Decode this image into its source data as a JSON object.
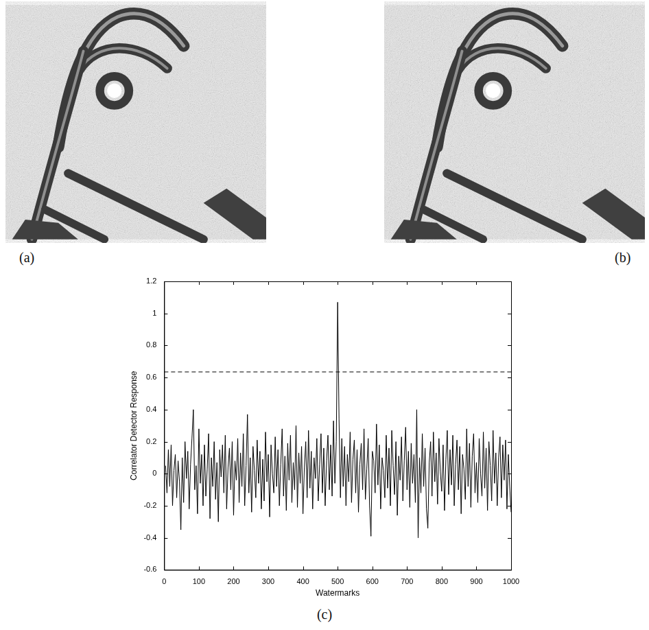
{
  "images": [
    {
      "label": "(a)"
    },
    {
      "label": "(b)"
    }
  ],
  "chart_caption": "(c)",
  "chart_data": {
    "type": "line",
    "x_label": "Watermarks",
    "y_label": "Correlator Detector Response",
    "color": "#000000",
    "grid": false,
    "threshold": 0.635,
    "xlim": [
      0,
      1000
    ],
    "xticks": [
      0,
      100,
      200,
      300,
      400,
      500,
      600,
      700,
      800,
      900,
      1000
    ],
    "ylim": [
      -0.6,
      1.2
    ],
    "yticks": [
      -0.6,
      -0.4,
      -0.2,
      0,
      0.2,
      0.4,
      0.6,
      0.8,
      1,
      1.2
    ],
    "x": [
      4,
      8,
      12,
      16,
      20,
      24,
      28,
      32,
      36,
      40,
      44,
      48,
      52,
      56,
      60,
      64,
      68,
      72,
      76,
      80,
      84,
      88,
      92,
      96,
      100,
      104,
      108,
      112,
      116,
      120,
      124,
      128,
      132,
      136,
      140,
      144,
      148,
      152,
      156,
      160,
      164,
      168,
      172,
      176,
      180,
      184,
      188,
      192,
      196,
      200,
      204,
      208,
      212,
      216,
      220,
      224,
      228,
      232,
      236,
      240,
      244,
      248,
      252,
      256,
      260,
      264,
      268,
      272,
      276,
      280,
      284,
      288,
      292,
      296,
      300,
      304,
      308,
      312,
      316,
      320,
      324,
      328,
      332,
      336,
      340,
      344,
      348,
      352,
      356,
      360,
      364,
      368,
      372,
      376,
      380,
      384,
      388,
      392,
      396,
      400,
      404,
      408,
      412,
      416,
      420,
      424,
      428,
      432,
      436,
      440,
      444,
      448,
      452,
      456,
      460,
      464,
      468,
      472,
      476,
      480,
      484,
      488,
      492,
      496,
      500,
      504,
      508,
      512,
      516,
      520,
      524,
      528,
      532,
      536,
      540,
      544,
      548,
      552,
      556,
      560,
      564,
      568,
      572,
      576,
      580,
      584,
      588,
      592,
      596,
      600,
      604,
      608,
      612,
      616,
      620,
      624,
      628,
      632,
      636,
      640,
      644,
      648,
      652,
      656,
      660,
      664,
      668,
      672,
      676,
      680,
      684,
      688,
      692,
      696,
      700,
      704,
      708,
      712,
      716,
      720,
      724,
      728,
      732,
      736,
      740,
      744,
      748,
      752,
      756,
      760,
      764,
      768,
      772,
      776,
      780,
      784,
      788,
      792,
      796,
      800,
      804,
      808,
      812,
      816,
      820,
      824,
      828,
      832,
      836,
      840,
      844,
      848,
      852,
      856,
      860,
      864,
      868,
      872,
      876,
      880,
      884,
      888,
      892,
      896,
      900,
      904,
      908,
      912,
      916,
      920,
      924,
      928,
      932,
      936,
      940,
      944,
      948,
      952,
      956,
      960,
      964,
      968,
      972,
      976,
      980,
      984,
      988,
      992,
      996,
      1000
    ],
    "values": [
      0.05,
      -0.12,
      0.15,
      -0.08,
      0.18,
      -0.2,
      0.02,
      0.12,
      -0.15,
      0.08,
      -0.05,
      -0.35,
      0.1,
      -0.18,
      0.2,
      -0.03,
      0.14,
      -0.22,
      0.06,
      0.22,
      0.4,
      -0.1,
      0.05,
      -0.25,
      0.28,
      -0.06,
      0.12,
      -0.2,
      0.18,
      -0.14,
      0.03,
      0.25,
      -0.28,
      0.1,
      -0.08,
      0.2,
      -0.16,
      0.07,
      -0.3,
      0.15,
      -0.02,
      0.18,
      -0.12,
      0.24,
      -0.22,
      0.04,
      0.16,
      -0.1,
      0.2,
      -0.26,
      0.08,
      -0.04,
      0.22,
      -0.18,
      0.13,
      -0.08,
      0.25,
      -0.2,
      0.05,
      0.37,
      -0.12,
      0.1,
      -0.24,
      0.17,
      0.02,
      -0.15,
      0.21,
      -0.06,
      0.14,
      -0.22,
      0.09,
      -0.17,
      0.26,
      -0.05,
      0.12,
      -0.27,
      0.18,
      0.0,
      -0.12,
      0.23,
      -0.08,
      0.15,
      -0.2,
      0.06,
      0.28,
      -0.14,
      0.11,
      -0.23,
      0.19,
      -0.04,
      0.24,
      -0.18,
      0.07,
      -0.1,
      0.3,
      -0.21,
      0.13,
      -0.06,
      0.17,
      -0.25,
      0.04,
      0.2,
      -0.15,
      0.27,
      -0.09,
      0.14,
      -0.22,
      0.1,
      -0.03,
      0.22,
      -0.17,
      0.06,
      0.25,
      -0.12,
      0.16,
      -0.2,
      0.08,
      0.24,
      -0.1,
      0.18,
      -0.14,
      0.33,
      -0.06,
      0.2,
      1.07,
      0.34,
      -0.15,
      0.22,
      -0.08,
      0.17,
      -0.2,
      0.12,
      -0.05,
      0.26,
      -0.18,
      0.09,
      0.21,
      -0.12,
      0.15,
      -0.24,
      0.06,
      0.19,
      -0.1,
      0.28,
      -0.16,
      0.03,
      0.22,
      -0.2,
      -0.39,
      0.14,
      0.08,
      -0.12,
      0.31,
      -0.07,
      0.18,
      -0.22,
      0.1,
      0.02,
      -0.15,
      0.24,
      -0.09,
      0.16,
      -0.2,
      0.27,
      0.05,
      -0.13,
      0.2,
      -0.26,
      0.11,
      -0.04,
      0.23,
      -0.17,
      0.08,
      0.29,
      -0.1,
      0.14,
      -0.21,
      0.19,
      -0.06,
      0.12,
      -0.18,
      0.4,
      -0.4,
      0.1,
      -0.12,
      0.25,
      -0.08,
      0.16,
      -0.22,
      -0.34,
      0.07,
      0.2,
      -0.14,
      0.26,
      -0.05,
      0.13,
      -0.19,
      0.22,
      0.01,
      -0.11,
      0.18,
      -0.23,
      0.09,
      0.27,
      -0.13,
      0.15,
      -0.07,
      0.24,
      -0.2,
      0.06,
      0.21,
      -0.1,
      0.17,
      -0.25,
      0.12,
      0.03,
      -0.16,
      0.28,
      -0.08,
      0.19,
      -0.21,
      0.11,
      0.25,
      -0.12,
      0.07,
      -0.18,
      0.22,
      0.0,
      -0.14,
      0.26,
      -0.09,
      0.16,
      -0.23,
      0.2,
      0.05,
      -0.17,
      0.27,
      -0.06,
      0.13,
      -0.2,
      0.1,
      0.23,
      -0.15,
      0.18,
      -0.04,
      0.21,
      -0.22,
      0.12,
      -0.08,
      -0.24
    ]
  }
}
